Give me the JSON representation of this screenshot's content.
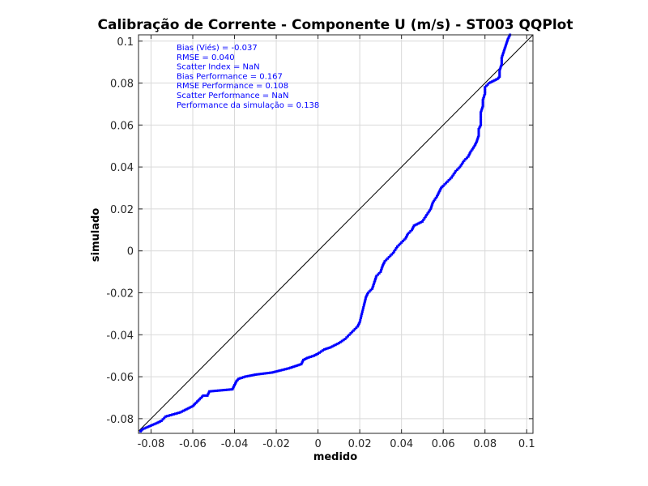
{
  "chart_data": {
    "type": "scatter",
    "title": "Calibração de Corrente - Componente U (m/s) - ST003 QQPlot",
    "xlabel": "medido",
    "ylabel": "simulado",
    "xlim": [
      -0.086,
      0.103
    ],
    "ylim": [
      -0.087,
      0.103
    ],
    "xticks": [
      -0.08,
      -0.06,
      -0.04,
      -0.02,
      0,
      0.02,
      0.04,
      0.06,
      0.08,
      0.1
    ],
    "yticks": [
      -0.08,
      -0.06,
      -0.04,
      -0.02,
      0,
      0.02,
      0.04,
      0.06,
      0.08,
      0.1
    ],
    "xtick_labels": [
      "-0.08",
      "-0.06",
      "-0.04",
      "-0.02",
      "0",
      "0.02",
      "0.04",
      "0.06",
      "0.08",
      "0.1"
    ],
    "ytick_labels": [
      "-0.08",
      "-0.06",
      "-0.04",
      "-0.02",
      "0",
      "0.02",
      "0.04",
      "0.06",
      "0.08",
      "0.1"
    ],
    "grid": true,
    "reference_line": "y = x",
    "point_color": "#0000ff",
    "line_color": "#000000",
    "annotations": [
      "Bias (Viés) = -0.037",
      "RMSE = 0.040",
      "Scatter Index = NaN",
      "Bias Performance = 0.167",
      "RMSE Performance = 0.108",
      "Scatter Performance = NaN",
      "Performance da simulação = 0.138"
    ],
    "qq_curve_points": [
      [
        -0.085,
        -0.086
      ],
      [
        -0.084,
        -0.085
      ],
      [
        -0.077,
        -0.082
      ],
      [
        -0.075,
        -0.081
      ],
      [
        -0.073,
        -0.079
      ],
      [
        -0.066,
        -0.077
      ],
      [
        -0.06,
        -0.074
      ],
      [
        -0.059,
        -0.073
      ],
      [
        -0.055,
        -0.069
      ],
      [
        -0.053,
        -0.069
      ],
      [
        -0.052,
        -0.067
      ],
      [
        -0.041,
        -0.066
      ],
      [
        -0.04,
        -0.064
      ],
      [
        -0.039,
        -0.062
      ],
      [
        -0.038,
        -0.061
      ],
      [
        -0.035,
        -0.06
      ],
      [
        -0.03,
        -0.059
      ],
      [
        -0.022,
        -0.058
      ],
      [
        -0.018,
        -0.057
      ],
      [
        -0.014,
        -0.056
      ],
      [
        -0.011,
        -0.055
      ],
      [
        -0.008,
        -0.054
      ],
      [
        -0.007,
        -0.052
      ],
      [
        -0.005,
        -0.051
      ],
      [
        -0.002,
        -0.05
      ],
      [
        0.0,
        -0.049
      ],
      [
        0.003,
        -0.047
      ],
      [
        0.006,
        -0.046
      ],
      [
        0.01,
        -0.044
      ],
      [
        0.013,
        -0.042
      ],
      [
        0.015,
        -0.04
      ],
      [
        0.017,
        -0.038
      ],
      [
        0.019,
        -0.036
      ],
      [
        0.02,
        -0.034
      ],
      [
        0.0205,
        -0.032
      ],
      [
        0.021,
        -0.03
      ],
      [
        0.0215,
        -0.028
      ],
      [
        0.022,
        -0.026
      ],
      [
        0.023,
        -0.022
      ],
      [
        0.024,
        -0.02
      ],
      [
        0.026,
        -0.018
      ],
      [
        0.027,
        -0.015
      ],
      [
        0.028,
        -0.012
      ],
      [
        0.03,
        -0.01
      ],
      [
        0.031,
        -0.007
      ],
      [
        0.032,
        -0.005
      ],
      [
        0.034,
        -0.003
      ],
      [
        0.036,
        -0.001
      ],
      [
        0.038,
        0.002
      ],
      [
        0.04,
        0.004
      ],
      [
        0.042,
        0.006
      ],
      [
        0.043,
        0.008
      ],
      [
        0.045,
        0.01
      ],
      [
        0.046,
        0.012
      ],
      [
        0.048,
        0.013
      ],
      [
        0.05,
        0.014
      ],
      [
        0.052,
        0.017
      ],
      [
        0.054,
        0.02
      ],
      [
        0.055,
        0.023
      ],
      [
        0.057,
        0.026
      ],
      [
        0.058,
        0.028
      ],
      [
        0.059,
        0.03
      ],
      [
        0.06,
        0.031
      ],
      [
        0.062,
        0.033
      ],
      [
        0.064,
        0.035
      ],
      [
        0.066,
        0.038
      ],
      [
        0.068,
        0.04
      ],
      [
        0.07,
        0.043
      ],
      [
        0.072,
        0.045
      ],
      [
        0.073,
        0.047
      ],
      [
        0.075,
        0.05
      ],
      [
        0.076,
        0.052
      ],
      [
        0.077,
        0.055
      ],
      [
        0.077,
        0.058
      ],
      [
        0.078,
        0.06
      ],
      [
        0.078,
        0.063
      ],
      [
        0.078,
        0.066
      ],
      [
        0.079,
        0.069
      ],
      [
        0.079,
        0.072
      ],
      [
        0.08,
        0.075
      ],
      [
        0.08,
        0.078
      ],
      [
        0.082,
        0.08
      ],
      [
        0.084,
        0.081
      ],
      [
        0.086,
        0.082
      ],
      [
        0.087,
        0.083
      ],
      [
        0.087,
        0.086
      ],
      [
        0.088,
        0.089
      ],
      [
        0.088,
        0.092
      ],
      [
        0.089,
        0.095
      ],
      [
        0.09,
        0.098
      ],
      [
        0.091,
        0.101
      ],
      [
        0.092,
        0.103
      ]
    ]
  }
}
